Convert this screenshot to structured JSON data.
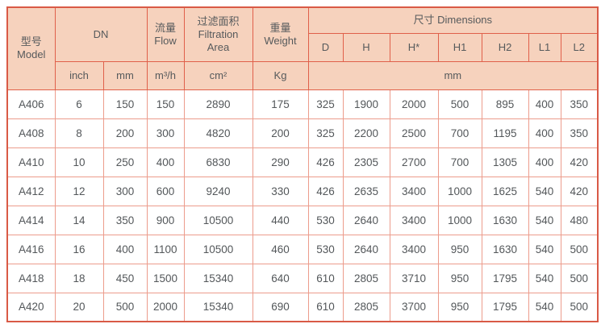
{
  "colors": {
    "header_bg": "#f6d2bd",
    "header_border": "#e0604a",
    "outer_border": "#d95a46",
    "data_border": "#ec9c8c",
    "text": "#53575a"
  },
  "table": {
    "header": {
      "model_zh": "型号",
      "model_en": "Model",
      "dn": "DN",
      "flow_zh": "流量",
      "flow_en": "Flow",
      "filtration_zh": "过滤面积",
      "filtration_en_line1": "Filtration",
      "filtration_en_line2": "Area",
      "weight_zh": "重量",
      "weight_en": "Weight",
      "dimensions": "尺寸 Dimensions",
      "unit_inch": "inch",
      "unit_mm": "mm",
      "unit_flow": "m³/h",
      "unit_area": "cm²",
      "unit_weight": "Kg",
      "unit_dimensions": "mm",
      "dim_cols": [
        "D",
        "H",
        "H*",
        "H1",
        "H2",
        "L1",
        "L2"
      ]
    },
    "rows": [
      {
        "model": "A406",
        "values": [
          "6",
          "150",
          "150",
          "2890",
          "175",
          "325",
          "1900",
          "2000",
          "500",
          "895",
          "400",
          "350"
        ]
      },
      {
        "model": "A408",
        "values": [
          "8",
          "200",
          "300",
          "4820",
          "200",
          "325",
          "2200",
          "2500",
          "700",
          "1195",
          "400",
          "350"
        ]
      },
      {
        "model": "A410",
        "values": [
          "10",
          "250",
          "400",
          "6830",
          "290",
          "426",
          "2305",
          "2700",
          "700",
          "1305",
          "400",
          "420"
        ]
      },
      {
        "model": "A412",
        "values": [
          "12",
          "300",
          "600",
          "9240",
          "330",
          "426",
          "2635",
          "3400",
          "1000",
          "1625",
          "540",
          "420"
        ]
      },
      {
        "model": "A414",
        "values": [
          "14",
          "350",
          "900",
          "10500",
          "440",
          "530",
          "2640",
          "3400",
          "1000",
          "1630",
          "540",
          "480"
        ]
      },
      {
        "model": "A416",
        "values": [
          "16",
          "400",
          "1100",
          "10500",
          "460",
          "530",
          "2640",
          "3400",
          "950",
          "1630",
          "540",
          "500"
        ]
      },
      {
        "model": "A418",
        "values": [
          "18",
          "450",
          "1500",
          "15340",
          "640",
          "610",
          "2805",
          "3710",
          "950",
          "1795",
          "540",
          "500"
        ]
      },
      {
        "model": "A420",
        "values": [
          "20",
          "500",
          "2000",
          "15340",
          "690",
          "610",
          "2805",
          "3700",
          "950",
          "1795",
          "540",
          "500"
        ]
      }
    ]
  }
}
